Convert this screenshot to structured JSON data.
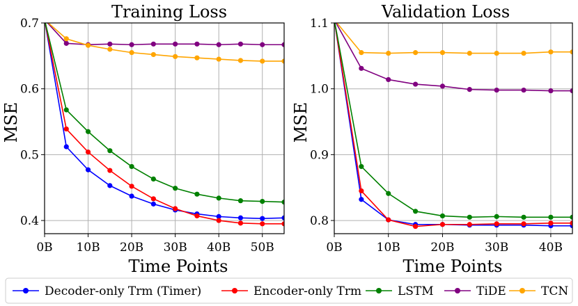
{
  "chart_data": [
    {
      "type": "line",
      "title": "Training Loss",
      "xlabel": "Time Points",
      "ylabel": "MSE",
      "xlim": [
        0,
        55
      ],
      "ylim": [
        0.38,
        0.7
      ],
      "x_ticks": [
        0,
        10,
        20,
        30,
        40,
        50
      ],
      "x_tick_labels": [
        "0B",
        "10B",
        "20B",
        "30B",
        "40B",
        "50B"
      ],
      "y_ticks": [
        0.4,
        0.5,
        0.6,
        0.7
      ],
      "y_tick_labels": [
        "0.4",
        "0.5",
        "0.6",
        "0.7"
      ],
      "grid": true,
      "x": [
        0,
        5,
        10,
        15,
        20,
        25,
        30,
        35,
        40,
        45,
        50,
        55
      ],
      "series": [
        {
          "name": "Decoder-only Trm (Timer)",
          "color": "#0000ff",
          "values": [
            0.705,
            0.512,
            0.477,
            0.453,
            0.437,
            0.425,
            0.416,
            0.41,
            0.406,
            0.404,
            0.403,
            0.404
          ]
        },
        {
          "name": "Encoder-only Trm",
          "color": "#ff0000",
          "values": [
            0.705,
            0.539,
            0.504,
            0.476,
            0.452,
            0.433,
            0.418,
            0.407,
            0.4,
            0.396,
            0.395,
            0.395
          ]
        },
        {
          "name": "LSTM",
          "color": "#008000",
          "values": [
            0.705,
            0.568,
            0.535,
            0.506,
            0.482,
            0.463,
            0.449,
            0.44,
            0.434,
            0.43,
            0.429,
            0.428
          ]
        },
        {
          "name": "TiDE",
          "color": "#800080",
          "values": [
            0.705,
            0.669,
            0.667,
            0.668,
            0.667,
            0.668,
            0.668,
            0.668,
            0.667,
            0.668,
            0.667,
            0.667
          ]
        },
        {
          "name": "TCN",
          "color": "#ffa500",
          "values": [
            0.705,
            0.676,
            0.666,
            0.66,
            0.655,
            0.652,
            0.649,
            0.647,
            0.645,
            0.643,
            0.642,
            0.642
          ]
        }
      ]
    },
    {
      "type": "line",
      "title": "Validation Loss",
      "xlabel": "Time Points",
      "ylabel": "MSE",
      "xlim": [
        0,
        44
      ],
      "ylim": [
        0.78,
        1.1
      ],
      "x_ticks": [
        0,
        10,
        20,
        30,
        40
      ],
      "x_tick_labels": [
        "0B",
        "10B",
        "20B",
        "30B",
        "40B"
      ],
      "y_ticks": [
        0.8,
        0.9,
        1.0,
        1.1
      ],
      "y_tick_labels": [
        "0.8",
        "0.9",
        "1.0",
        "1.1"
      ],
      "grid": true,
      "x": [
        0,
        5,
        10,
        15,
        20,
        25,
        30,
        35,
        40,
        44
      ],
      "series": [
        {
          "name": "Decoder-only Trm (Timer)",
          "color": "#0000ff",
          "values": [
            1.105,
            0.832,
            0.801,
            0.794,
            0.794,
            0.793,
            0.793,
            0.793,
            0.792,
            0.792
          ]
        },
        {
          "name": "Encoder-only Trm",
          "color": "#ff0000",
          "values": [
            1.105,
            0.845,
            0.801,
            0.791,
            0.794,
            0.794,
            0.795,
            0.795,
            0.796,
            0.796
          ]
        },
        {
          "name": "LSTM",
          "color": "#008000",
          "values": [
            1.105,
            0.882,
            0.841,
            0.814,
            0.807,
            0.805,
            0.806,
            0.805,
            0.805,
            0.805
          ]
        },
        {
          "name": "TiDE",
          "color": "#800080",
          "values": [
            1.105,
            1.031,
            1.014,
            1.007,
            1.004,
            0.999,
            0.998,
            0.998,
            0.997,
            0.997
          ]
        },
        {
          "name": "TCN",
          "color": "#ffa500",
          "values": [
            1.105,
            1.055,
            1.054,
            1.055,
            1.055,
            1.054,
            1.054,
            1.054,
            1.056,
            1.056
          ]
        }
      ]
    }
  ],
  "legend": {
    "placement": "bottom",
    "items": [
      {
        "label": "Decoder-only Trm (Timer)",
        "color": "#0000ff"
      },
      {
        "label": "Encoder-only Trm",
        "color": "#ff0000"
      },
      {
        "label": "LSTM",
        "color": "#008000"
      },
      {
        "label": "TiDE",
        "color": "#800080"
      },
      {
        "label": "TCN",
        "color": "#ffa500"
      }
    ]
  }
}
